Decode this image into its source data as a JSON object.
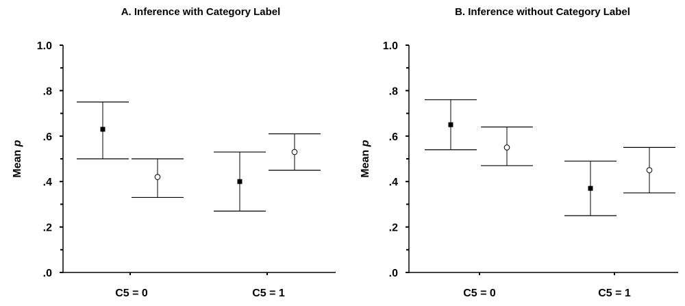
{
  "chart_data": [
    {
      "type": "scatter",
      "title": "A. Inference with Category Label",
      "xlabel": "",
      "ylabel": "Mean p",
      "categories": [
        "C5 = 0",
        "C5 = 1"
      ],
      "ylim": [
        0,
        1.0
      ],
      "yticks": [
        ".0",
        ".2",
        ".4",
        ".6",
        ".8",
        "1.0"
      ],
      "grid": false,
      "series": [
        {
          "marker": "filled-square",
          "values": [
            0.63,
            0.4
          ],
          "error_low": [
            0.5,
            0.27
          ],
          "error_high": [
            0.75,
            0.53
          ]
        },
        {
          "marker": "open-circle",
          "values": [
            0.42,
            0.53
          ],
          "error_low": [
            0.33,
            0.45
          ],
          "error_high": [
            0.5,
            0.61
          ]
        }
      ]
    },
    {
      "type": "scatter",
      "title": "B. Inference without Category Label",
      "xlabel": "",
      "ylabel": "Mean p",
      "categories": [
        "C5 = 0",
        "C5 = 1"
      ],
      "ylim": [
        0,
        1.0
      ],
      "yticks": [
        ".0",
        ".2",
        ".4",
        ".6",
        ".8",
        "1.0"
      ],
      "grid": false,
      "series": [
        {
          "marker": "filled-square",
          "values": [
            0.65,
            0.37
          ],
          "error_low": [
            0.54,
            0.25
          ],
          "error_high": [
            0.76,
            0.49
          ]
        },
        {
          "marker": "open-circle",
          "values": [
            0.55,
            0.45
          ],
          "error_low": [
            0.47,
            0.35
          ],
          "error_high": [
            0.64,
            0.55
          ]
        }
      ]
    }
  ]
}
